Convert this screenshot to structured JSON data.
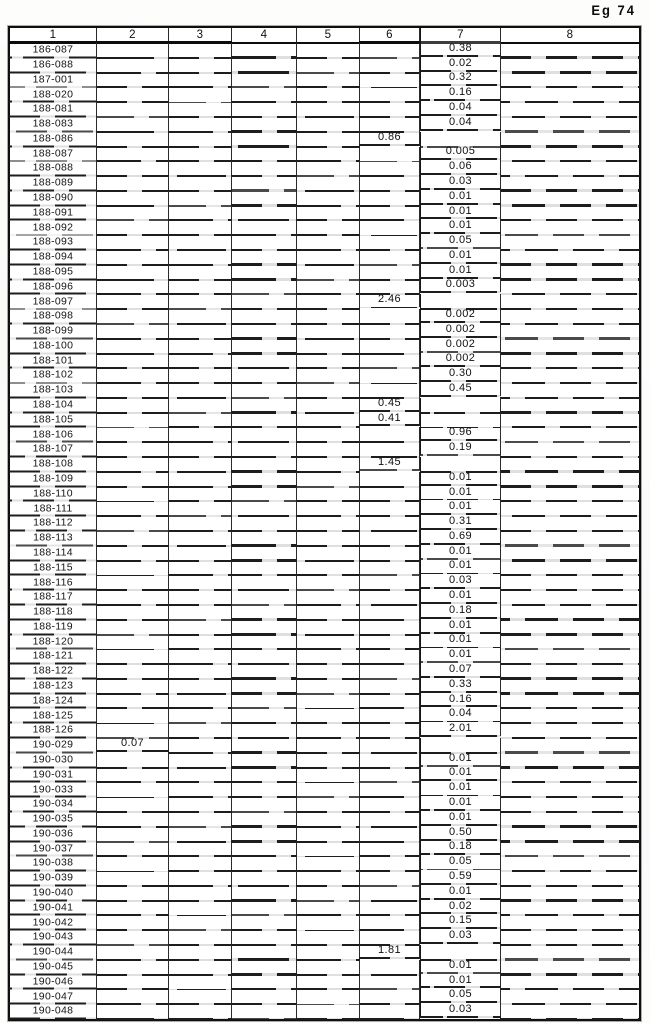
{
  "page": {
    "corner_label": "Eg 74"
  },
  "table": {
    "headers": [
      "1",
      "2",
      "3",
      "4",
      "5",
      "6",
      "7",
      "8"
    ],
    "rows": [
      {
        "id": "186-087",
        "col": 7,
        "value": "0.38"
      },
      {
        "id": "186-088",
        "col": 7,
        "value": "0.02"
      },
      {
        "id": "187-001",
        "col": 7,
        "value": "0.32"
      },
      {
        "id": "188-020",
        "col": 7,
        "value": "0.16"
      },
      {
        "id": "188-081",
        "col": 7,
        "value": "0.04"
      },
      {
        "id": "188-083",
        "col": 7,
        "value": "0.04"
      },
      {
        "id": "188-086",
        "col": 6,
        "value": "0.86"
      },
      {
        "id": "188-087",
        "col": 7,
        "value": "0.005"
      },
      {
        "id": "188-088",
        "col": 7,
        "value": "0.06"
      },
      {
        "id": "188-089",
        "col": 7,
        "value": "0.03"
      },
      {
        "id": "188-090",
        "col": 7,
        "value": "0.01"
      },
      {
        "id": "188-091",
        "col": 7,
        "value": "0.01"
      },
      {
        "id": "188-092",
        "col": 7,
        "value": "0.01"
      },
      {
        "id": "188-093",
        "col": 7,
        "value": "0.05"
      },
      {
        "id": "188-094",
        "col": 7,
        "value": "0.01"
      },
      {
        "id": "188-095",
        "col": 7,
        "value": "0.01"
      },
      {
        "id": "188-096",
        "col": 7,
        "value": "0.003"
      },
      {
        "id": "188-097",
        "col": 6,
        "value": "2.46"
      },
      {
        "id": "188-098",
        "col": 7,
        "value": "0.002"
      },
      {
        "id": "188-099",
        "col": 7,
        "value": "0.002"
      },
      {
        "id": "188-100",
        "col": 7,
        "value": "0.002"
      },
      {
        "id": "188-101",
        "col": 7,
        "value": "0.002"
      },
      {
        "id": "188-102",
        "col": 7,
        "value": "0.30"
      },
      {
        "id": "188-103",
        "col": 7,
        "value": "0.45"
      },
      {
        "id": "188-104",
        "col": 6,
        "value": "0.45"
      },
      {
        "id": "188-105",
        "col": 6,
        "value": "0.41"
      },
      {
        "id": "188-106",
        "col": 7,
        "value": "0.96"
      },
      {
        "id": "188-107",
        "col": 7,
        "value": "0.19"
      },
      {
        "id": "188-108",
        "col": 6,
        "value": "1.45"
      },
      {
        "id": "188-109",
        "col": 7,
        "value": "0.01"
      },
      {
        "id": "188-110",
        "col": 7,
        "value": "0.01"
      },
      {
        "id": "188-111",
        "col": 7,
        "value": "0.01"
      },
      {
        "id": "188-112",
        "col": 7,
        "value": "0.31"
      },
      {
        "id": "188-113",
        "col": 7,
        "value": "0.69"
      },
      {
        "id": "188-114",
        "col": 7,
        "value": "0.01"
      },
      {
        "id": "188-115",
        "col": 7,
        "value": "0.01"
      },
      {
        "id": "188-116",
        "col": 7,
        "value": "0.03"
      },
      {
        "id": "188-117",
        "col": 7,
        "value": "0.01"
      },
      {
        "id": "188-118",
        "col": 7,
        "value": "0.18"
      },
      {
        "id": "188-119",
        "col": 7,
        "value": "0.01"
      },
      {
        "id": "188-120",
        "col": 7,
        "value": "0.01"
      },
      {
        "id": "188-121",
        "col": 7,
        "value": "0.01"
      },
      {
        "id": "188-122",
        "col": 7,
        "value": "0.07"
      },
      {
        "id": "188-123",
        "col": 7,
        "value": "0.33"
      },
      {
        "id": "188-124",
        "col": 7,
        "value": "0.16"
      },
      {
        "id": "188-125",
        "col": 7,
        "value": "0.04"
      },
      {
        "id": "188-126",
        "col": 7,
        "value": "2.01"
      },
      {
        "id": "190-029",
        "col": 2,
        "value": "0.07"
      },
      {
        "id": "190-030",
        "col": 7,
        "value": "0.01"
      },
      {
        "id": "190-031",
        "col": 7,
        "value": "0.01"
      },
      {
        "id": "190-033",
        "col": 7,
        "value": "0.01"
      },
      {
        "id": "190-034",
        "col": 7,
        "value": "0.01"
      },
      {
        "id": "190-035",
        "col": 7,
        "value": "0.01"
      },
      {
        "id": "190-036",
        "col": 7,
        "value": "0.50"
      },
      {
        "id": "190-037",
        "col": 7,
        "value": "0.18"
      },
      {
        "id": "190-038",
        "col": 7,
        "value": "0.05"
      },
      {
        "id": "190-039",
        "col": 7,
        "value": "0.59"
      },
      {
        "id": "190-040",
        "col": 7,
        "value": "0.01"
      },
      {
        "id": "190-041",
        "col": 7,
        "value": "0.02"
      },
      {
        "id": "190-042",
        "col": 7,
        "value": "0.15"
      },
      {
        "id": "190-043",
        "col": 7,
        "value": "0.03"
      },
      {
        "id": "190-044",
        "col": 6,
        "value": "1.81"
      },
      {
        "id": "190-045",
        "col": 7,
        "value": "0.01"
      },
      {
        "id": "190-046",
        "col": 7,
        "value": "0.01"
      },
      {
        "id": "190-047",
        "col": 7,
        "value": "0.05"
      },
      {
        "id": "190-048",
        "col": 7,
        "value": "0.03"
      }
    ]
  }
}
